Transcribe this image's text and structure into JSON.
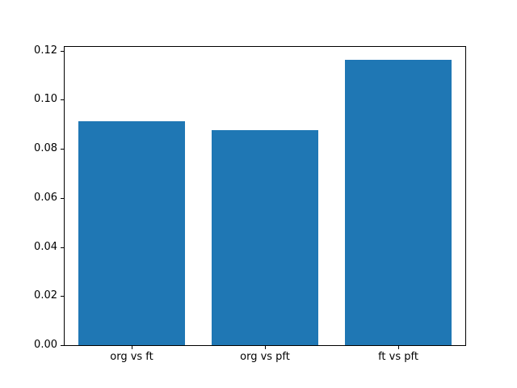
{
  "figure": {
    "background": "#ffffff"
  },
  "chart_data": {
    "type": "bar",
    "categories": [
      "org vs ft",
      "org vs pft",
      "ft vs pft"
    ],
    "values": [
      0.0913,
      0.0877,
      0.1161
    ],
    "title": "",
    "xlabel": "",
    "ylabel": "",
    "ylim": [
      0,
      0.1215
    ],
    "yticks": [
      0.0,
      0.02,
      0.04,
      0.06,
      0.08,
      0.1,
      0.12
    ],
    "ytick_decimals": 2,
    "bar_color": "#1f77b4",
    "bar_width_fraction": 0.8,
    "axis_color": "#000000",
    "text_color": "#000000",
    "grid": false,
    "legend": null
  }
}
